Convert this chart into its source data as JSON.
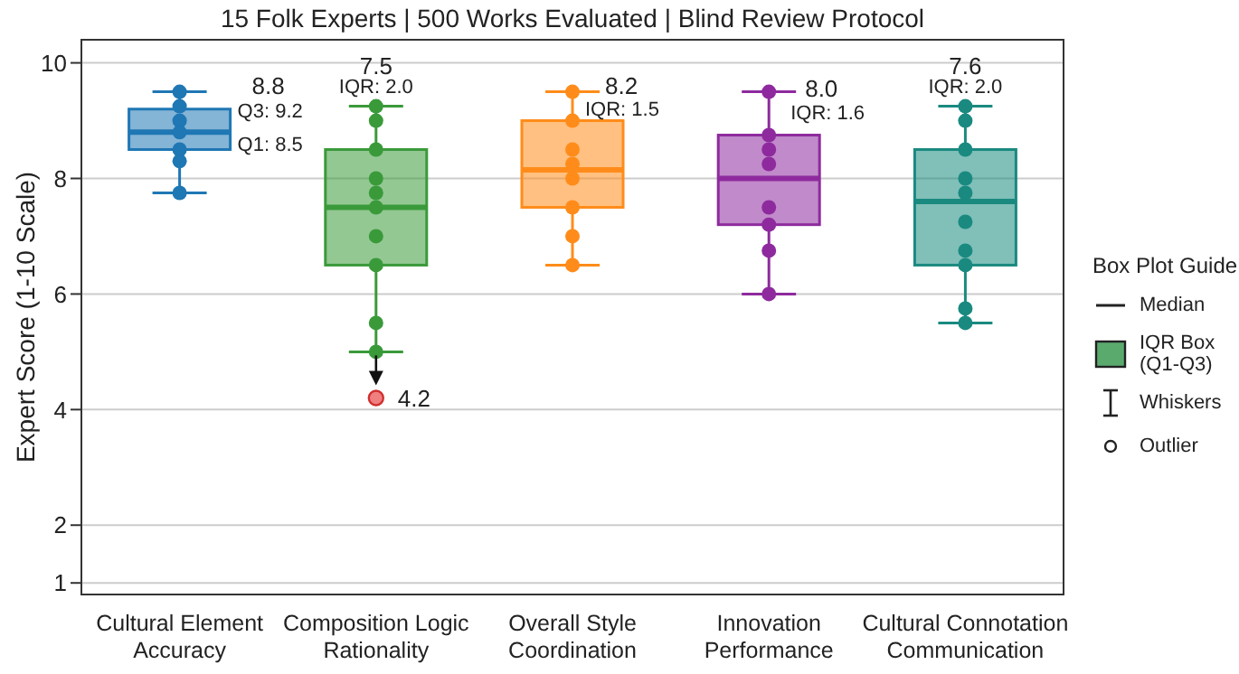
{
  "chart_data": {
    "type": "box",
    "title": "15 Folk Experts | 500 Works Evaluated | Blind Review Protocol",
    "ylabel": "Expert Score (1-10 Scale)",
    "categories": [
      "Cultural Element Accuracy",
      "Composition Logic Rationality",
      "Overall Style Coordination",
      "Innovation Performance",
      "Cultural Connotation Communication"
    ],
    "boxes": [
      {
        "low": 7.75,
        "q1": 8.5,
        "median": 8.8,
        "q3": 9.2,
        "high": 9.5
      },
      {
        "low": 5.0,
        "q1": 6.5,
        "median": 7.5,
        "q3": 8.5,
        "high": 9.25,
        "outliers": [
          4.2
        ]
      },
      {
        "low": 6.5,
        "q1": 7.5,
        "median": 8.15,
        "q3": 9.0,
        "high": 9.5
      },
      {
        "low": 6.0,
        "q1": 7.2,
        "median": 8.0,
        "q3": 8.75,
        "high": 9.5
      },
      {
        "low": 5.5,
        "q1": 6.5,
        "median": 7.6,
        "q3": 8.5,
        "high": 9.25
      }
    ],
    "colors": [
      "#1f77b4",
      "#3a9a3a",
      "#ff8c1a",
      "#8e2a9e",
      "#1a8a80"
    ],
    "series": [
      {
        "type": "scatter",
        "color": "#1f77b4",
        "x": [
          "Cultural Element Accuracy",
          "Cultural Element Accuracy",
          "Cultural Element Accuracy",
          "Cultural Element Accuracy",
          "Cultural Element Accuracy",
          "Cultural Element Accuracy",
          "Cultural Element Accuracy"
        ],
        "values": [
          9.5,
          9.25,
          9.0,
          8.8,
          8.5,
          8.3,
          7.75
        ]
      },
      {
        "type": "scatter",
        "color": "#3a9a3a",
        "x": [
          "Composition Logic Rationality",
          "Composition Logic Rationality",
          "Composition Logic Rationality",
          "Composition Logic Rationality",
          "Composition Logic Rationality",
          "Composition Logic Rationality",
          "Composition Logic Rationality",
          "Composition Logic Rationality",
          "Composition Logic Rationality",
          "Composition Logic Rationality"
        ],
        "values": [
          9.25,
          9.0,
          8.5,
          8.0,
          7.75,
          7.5,
          7.0,
          6.5,
          5.5,
          5.0
        ]
      },
      {
        "type": "scatter",
        "color": "#ff8c1a",
        "x": [
          "Overall Style Coordination",
          "Overall Style Coordination",
          "Overall Style Coordination",
          "Overall Style Coordination",
          "Overall Style Coordination",
          "Overall Style Coordination",
          "Overall Style Coordination",
          "Overall Style Coordination"
        ],
        "values": [
          9.5,
          9.0,
          8.5,
          8.25,
          8.0,
          7.5,
          7.0,
          6.5
        ]
      },
      {
        "type": "scatter",
        "color": "#8e2a9e",
        "x": [
          "Innovation Performance",
          "Innovation Performance",
          "Innovation Performance",
          "Innovation Performance",
          "Innovation Performance",
          "Innovation Performance",
          "Innovation Performance",
          "Innovation Performance"
        ],
        "values": [
          9.5,
          8.75,
          8.5,
          8.25,
          7.5,
          7.2,
          6.75,
          6.0
        ]
      },
      {
        "type": "scatter",
        "color": "#1a8a80",
        "x": [
          "Cultural Connotation Communication",
          "Cultural Connotation Communication",
          "Cultural Connotation Communication",
          "Cultural Connotation Communication",
          "Cultural Connotation Communication",
          "Cultural Connotation Communication",
          "Cultural Connotation Communication",
          "Cultural Connotation Communication",
          "Cultural Connotation Communication",
          "Cultural Connotation Communication"
        ],
        "values": [
          9.25,
          9.0,
          8.5,
          8.0,
          7.75,
          7.25,
          6.75,
          6.5,
          5.75,
          5.5
        ]
      }
    ],
    "ylim": [
      0.8,
      10.4
    ],
    "yticks": [
      1,
      2,
      4,
      6,
      8,
      10
    ],
    "grid": "y",
    "legend_title": "Box Plot Guide",
    "annotations": [
      "8.8",
      "Q3: 9.2",
      "Q1: 8.5",
      "7.5",
      "IQR: 2.0",
      "8.2",
      "IQR: 1.5",
      "8.0",
      "IQR: 1.6",
      "7.6",
      "IQR: 2.0",
      "4.2",
      "Median",
      "IQR Box (Q1-Q3)",
      "Whiskers",
      "Outlier"
    ]
  }
}
